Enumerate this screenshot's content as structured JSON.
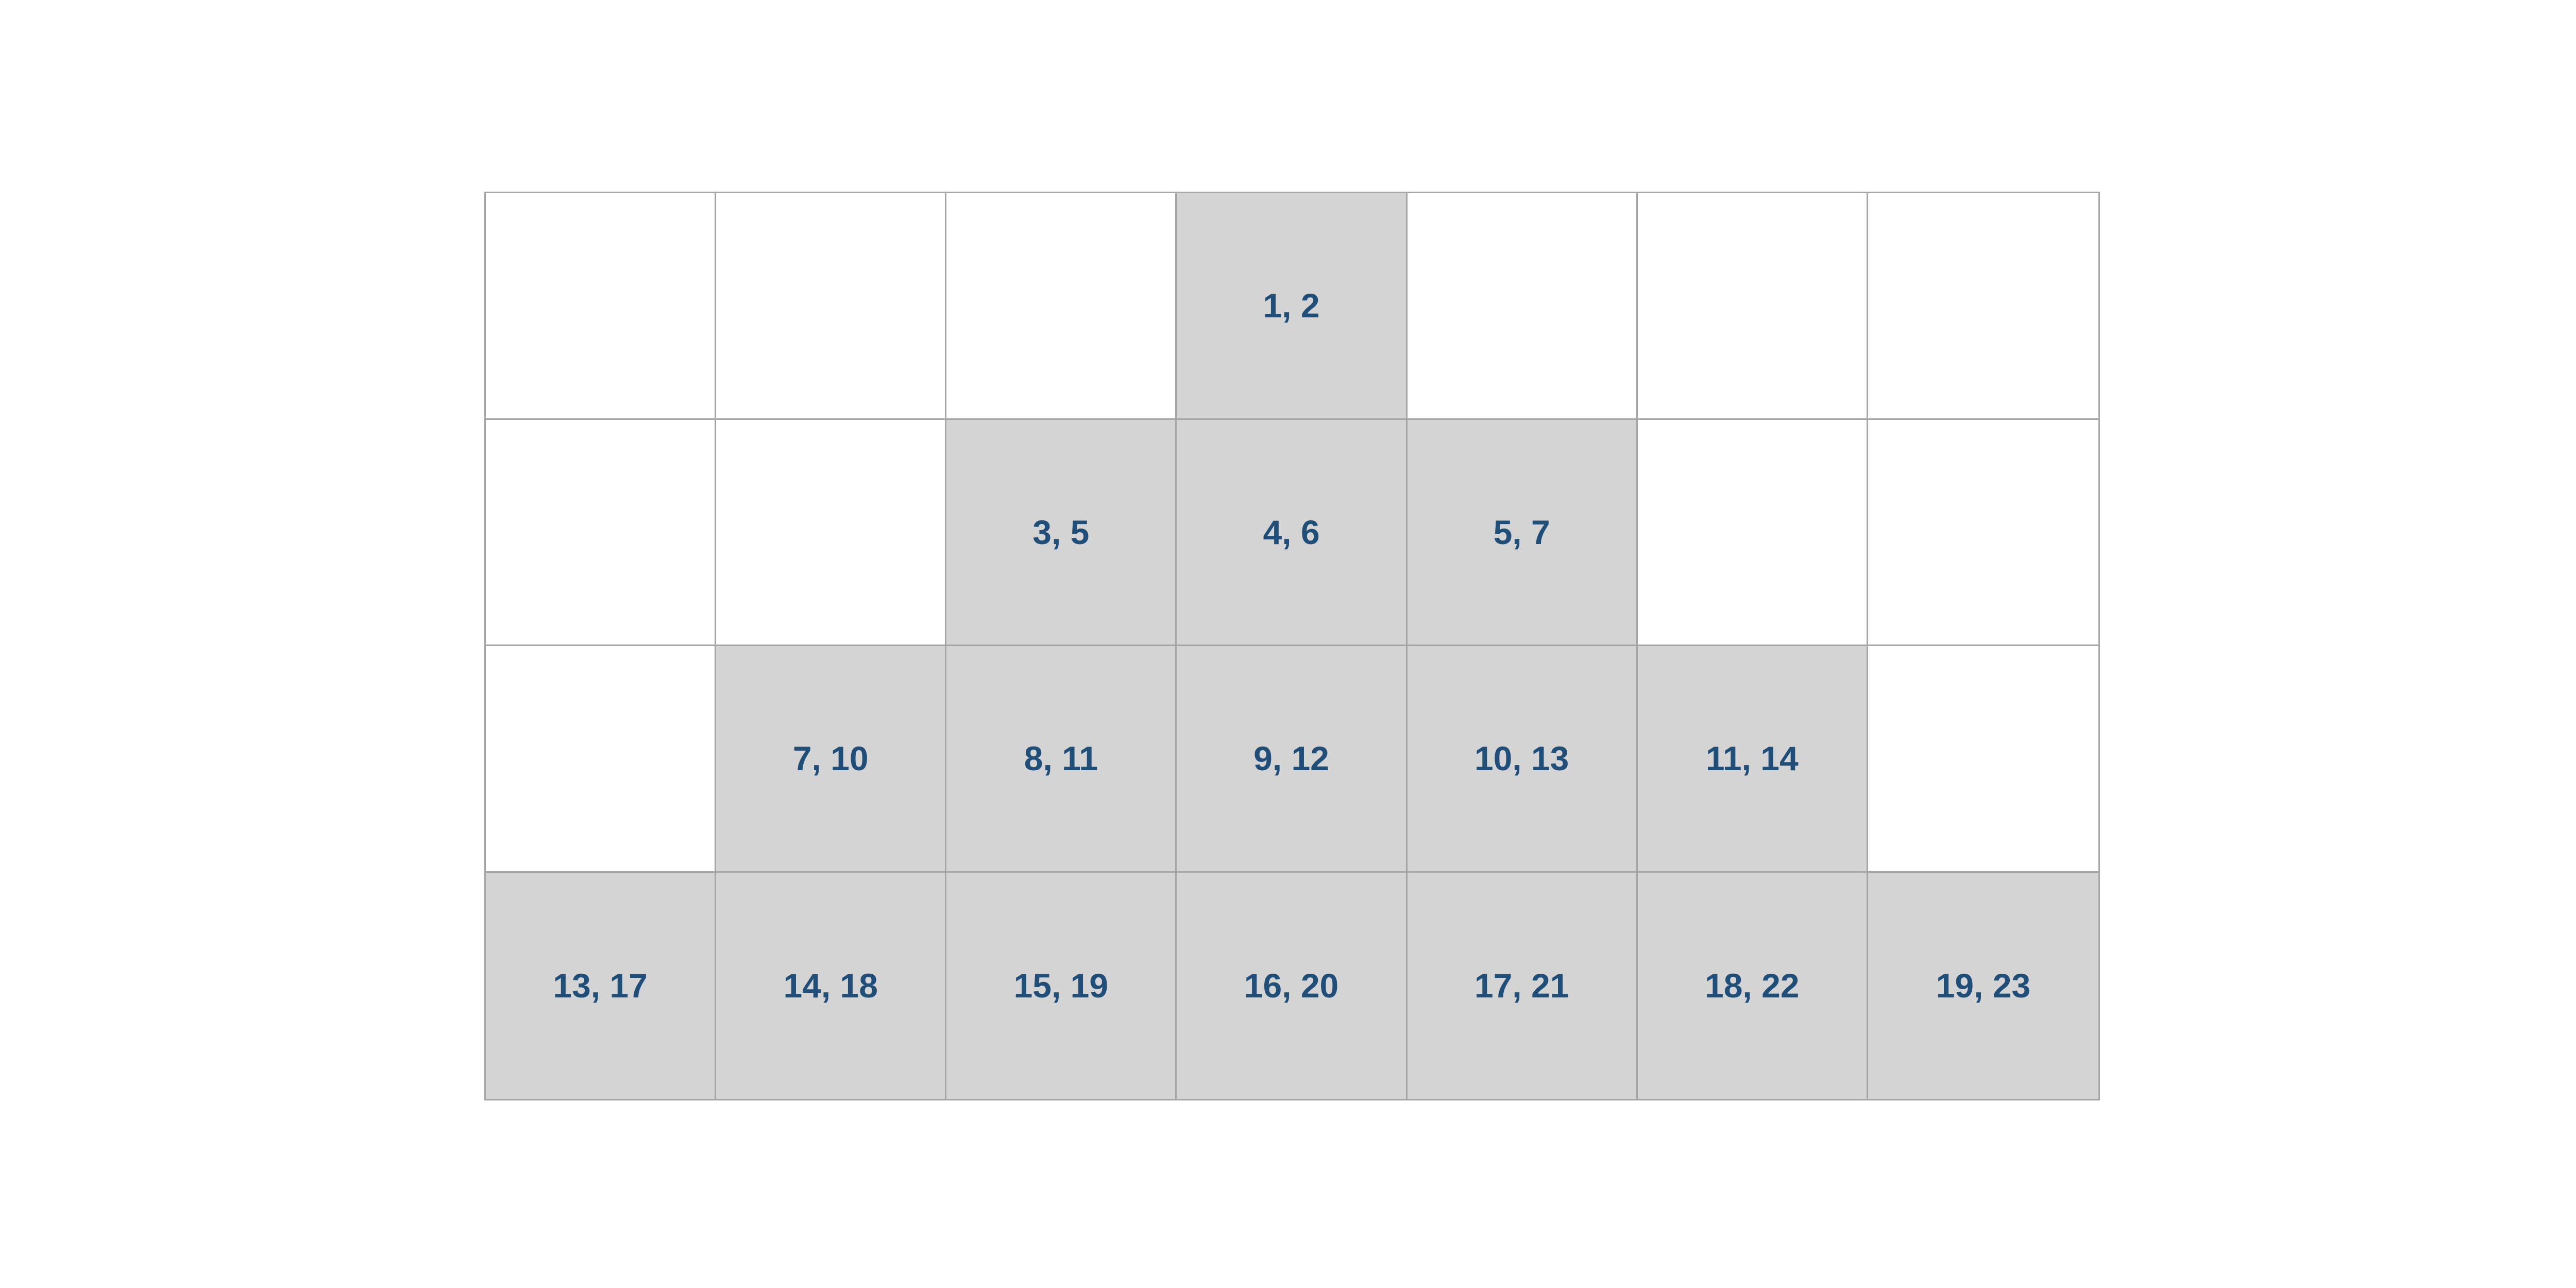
{
  "colors": {
    "filled": "#d4d4d4",
    "empty": "#ffffff",
    "border": "#a6a6a6",
    "text": "#1f4e79"
  },
  "grid": {
    "rows": [
      [
        "",
        "",
        "",
        "1, 2",
        "",
        "",
        ""
      ],
      [
        "",
        "",
        "3, 5",
        "4, 6",
        "5, 7",
        "",
        ""
      ],
      [
        "",
        "7, 10",
        "8, 11",
        "9, 12",
        "10, 13",
        "11, 14",
        ""
      ],
      [
        "13, 17",
        "14, 18",
        "15, 19",
        "16, 20",
        "17, 21",
        "18, 22",
        "19, 23"
      ]
    ]
  }
}
